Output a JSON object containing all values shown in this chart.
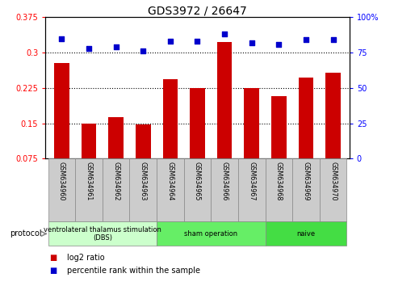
{
  "title": "GDS3972 / 26647",
  "samples": [
    "GSM634960",
    "GSM634961",
    "GSM634962",
    "GSM634963",
    "GSM634964",
    "GSM634965",
    "GSM634966",
    "GSM634967",
    "GSM634968",
    "GSM634969",
    "GSM634970"
  ],
  "log2_ratio": [
    0.278,
    0.15,
    0.163,
    0.147,
    0.243,
    0.225,
    0.323,
    0.225,
    0.207,
    0.247,
    0.258
  ],
  "percentile_rank": [
    85,
    78,
    79,
    76,
    83,
    83,
    88,
    82,
    81,
    84,
    84
  ],
  "bar_color": "#cc0000",
  "dot_color": "#0000cc",
  "ylim_left": [
    0.075,
    0.375
  ],
  "ylim_right": [
    0,
    100
  ],
  "yticks_left": [
    0.075,
    0.15,
    0.225,
    0.3,
    0.375
  ],
  "ytick_labels_left": [
    "0.075",
    "0.15",
    "0.225",
    "0.3",
    "0.375"
  ],
  "yticks_right": [
    0,
    25,
    50,
    75,
    100
  ],
  "ytick_labels_right": [
    "0",
    "25",
    "50",
    "75",
    "100%"
  ],
  "gridlines": [
    0.15,
    0.225,
    0.3
  ],
  "protocol_groups": [
    {
      "label": "ventrolateral thalamus stimulation\n(DBS)",
      "start": 0,
      "end": 3,
      "color": "#ccffcc"
    },
    {
      "label": "sham operation",
      "start": 4,
      "end": 7,
      "color": "#66ee66"
    },
    {
      "label": "naive",
      "start": 8,
      "end": 10,
      "color": "#44dd44"
    }
  ],
  "legend_items": [
    {
      "color": "#cc0000",
      "label": "log2 ratio"
    },
    {
      "color": "#0000cc",
      "label": "percentile rank within the sample"
    }
  ],
  "protocol_label": "protocol",
  "sample_box_color": "#cccccc",
  "sample_box_border": "#888888"
}
